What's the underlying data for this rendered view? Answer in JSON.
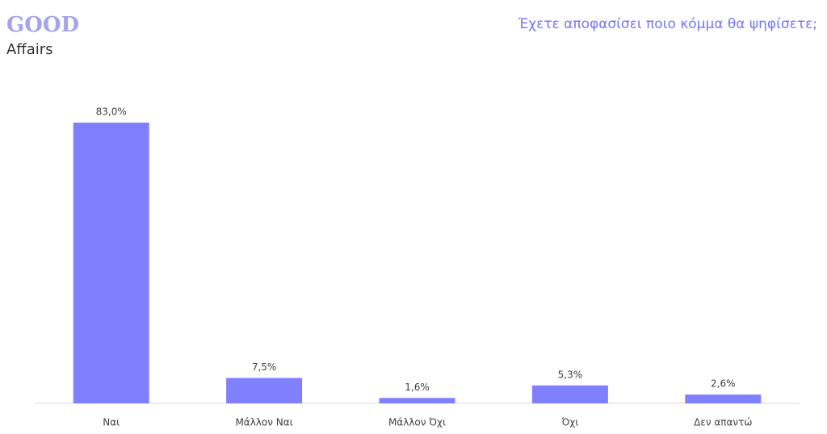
{
  "logo": {
    "line1": "GOOD",
    "line2": "Affairs"
  },
  "chart_data": {
    "type": "bar",
    "title": "Έχετε αποφασίσει ποιο κόμμα θα ψηφίσετε;",
    "categories": [
      "Ναι",
      "Μάλλον Ναι",
      "Μάλλον Όχι",
      "Όχι",
      "Δεν απαντώ"
    ],
    "values": [
      83.0,
      7.5,
      1.6,
      5.3,
      2.6
    ],
    "value_labels": [
      "83,0%",
      "7,5%",
      "1,6%",
      "5,3%",
      "2,6%"
    ],
    "color": "#8080ff"
  }
}
